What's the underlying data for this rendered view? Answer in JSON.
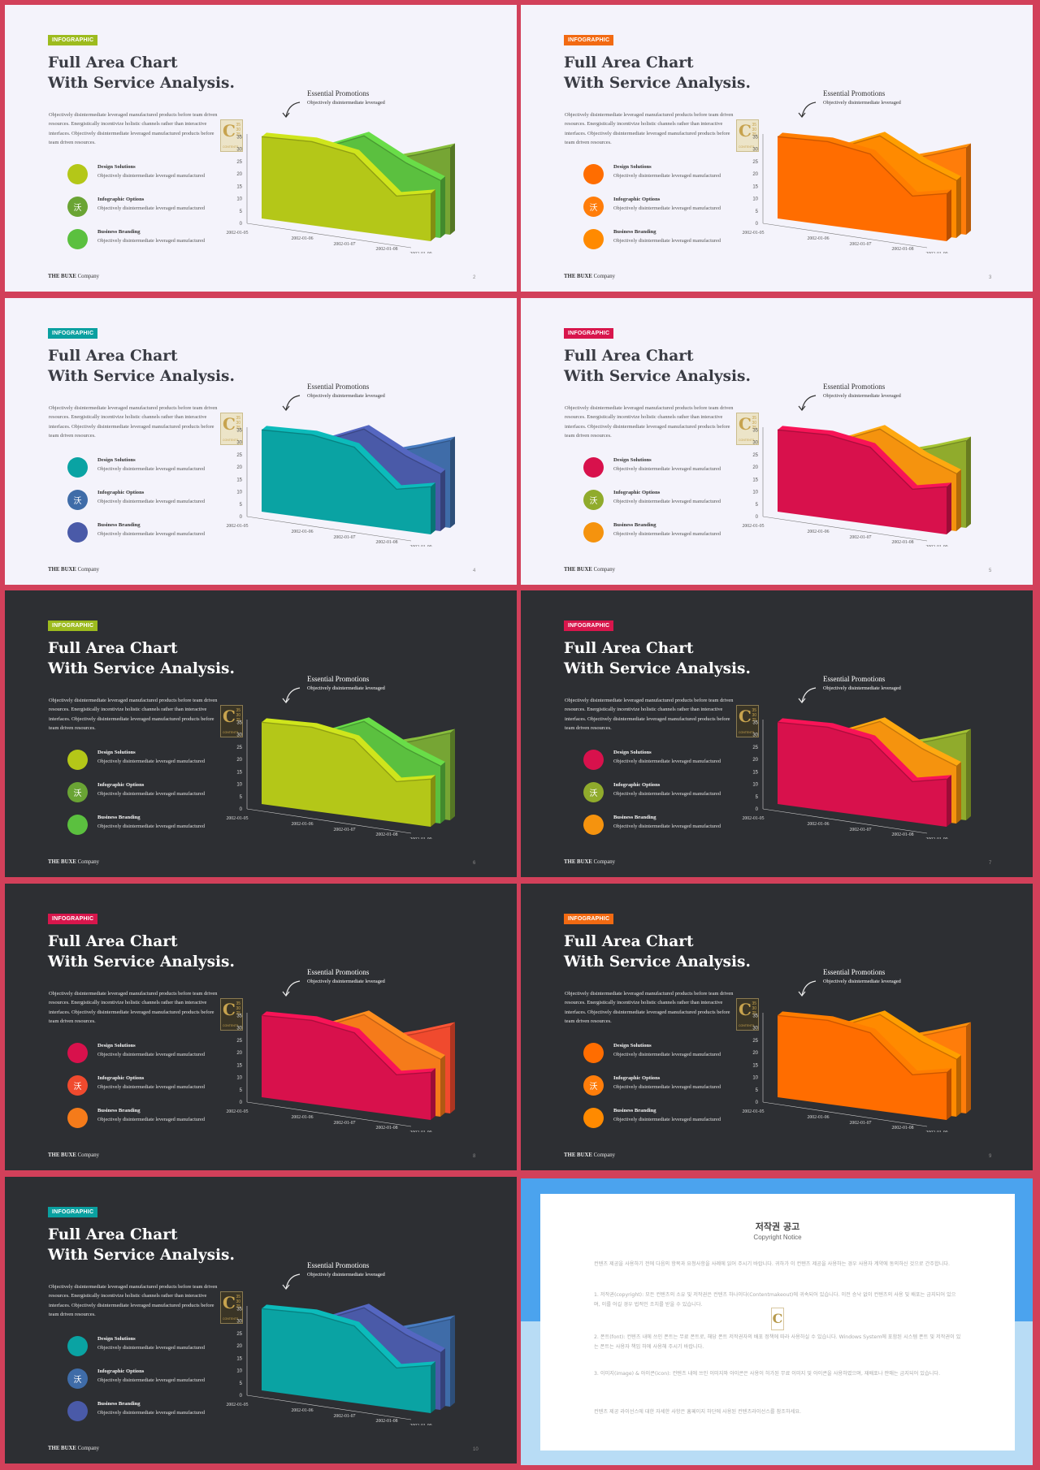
{
  "slides": [
    {
      "page": "2",
      "theme": "light",
      "pos": [
        6,
        6
      ],
      "badge_color": "#9dbb1e",
      "colors": [
        "#b4c718",
        "#5bc03f",
        "#76a534"
      ],
      "item_colors": [
        "#b4c718",
        "#6aa434",
        "#5bc03f"
      ]
    },
    {
      "page": "3",
      "theme": "light",
      "pos": [
        641,
        6
      ],
      "badge_color": "#f26a12",
      "colors": [
        "#ff6d00",
        "#ff8a00",
        "#ff7d0a"
      ],
      "item_colors": [
        "#ff6d00",
        "#ff7d0a",
        "#ff8a00"
      ]
    },
    {
      "page": "4",
      "theme": "light",
      "pos": [
        6,
        367
      ],
      "badge_color": "#0aa0a0",
      "colors": [
        "#0aa3a3",
        "#4a5aa8",
        "#3f6ca8"
      ],
      "item_colors": [
        "#0aa3a3",
        "#3f6ca8",
        "#4a5aa8"
      ]
    },
    {
      "page": "5",
      "theme": "light",
      "pos": [
        641,
        367
      ],
      "badge_color": "#d8164c",
      "colors": [
        "#d8114c",
        "#f5930e",
        "#90ab2c"
      ],
      "item_colors": [
        "#d8114c",
        "#90ab2c",
        "#f5930e"
      ]
    },
    {
      "page": "6",
      "theme": "dark",
      "pos": [
        6,
        727
      ],
      "badge_color": "#9dbb1e",
      "colors": [
        "#b4c718",
        "#5bc03f",
        "#76a534"
      ],
      "item_colors": [
        "#b4c718",
        "#6aa434",
        "#5bc03f"
      ]
    },
    {
      "page": "7",
      "theme": "dark",
      "pos": [
        641,
        727
      ],
      "badge_color": "#d8164c",
      "colors": [
        "#d8114c",
        "#f5930e",
        "#90ab2c"
      ],
      "item_colors": [
        "#d8114c",
        "#90ab2c",
        "#f5930e"
      ]
    },
    {
      "page": "8",
      "theme": "dark",
      "pos": [
        6,
        1088
      ],
      "badge_color": "#d8164c",
      "colors": [
        "#d8114c",
        "#f57b1a",
        "#f04a2e"
      ],
      "item_colors": [
        "#d8114c",
        "#f04a2e",
        "#f57b1a"
      ]
    },
    {
      "page": "9",
      "theme": "dark",
      "pos": [
        641,
        1088
      ],
      "badge_color": "#f26a12",
      "colors": [
        "#ff6d00",
        "#ff8a00",
        "#ff7d0a"
      ],
      "item_colors": [
        "#ff6d00",
        "#ff7d0a",
        "#ff8a00"
      ]
    },
    {
      "page": "10",
      "theme": "dark",
      "pos": [
        6,
        1449
      ],
      "badge_color": "#0aa0a0",
      "colors": [
        "#0aa3a3",
        "#4a5aa8",
        "#3f6ca8"
      ],
      "item_colors": [
        "#0aa3a3",
        "#3f6ca8",
        "#4a5aa8"
      ]
    }
  ],
  "content": {
    "badge": "INFOGRAPHIC",
    "title_line1": "Full Area Chart",
    "title_line2": "With Service Analysis.",
    "desc": "Objectively disintermediate leveraged manufactured products before team driven resources. Energistically incentivize holistic channels rather than interactive interfaces. Objectively disintermediate leveraged manufactured products before team driven resources.",
    "items": [
      {
        "title": "Design Solutions",
        "sub": "Objectively disintermediate leveraged manufactured",
        "glyph": ""
      },
      {
        "title": "Infographic Options",
        "sub": "Objectively disintermediate leveraged manufactured",
        "glyph": "沃"
      },
      {
        "title": "Business Branding",
        "sub": "Objectively disintermediate leveraged manufactured",
        "glyph": ""
      }
    ],
    "annotation_title": "Essential Promotions",
    "annotation_sub": "Objectively disintermediate leveraged",
    "footer_brand": "THE BUXE",
    "footer_company": "Company",
    "logo": {
      "letter": "C",
      "num_top": "35",
      "num_mid": "30",
      "num_bot": "25",
      "brand": "CONTENTS"
    }
  },
  "chart_data": {
    "type": "area",
    "x": [
      "2002-01-05",
      "2002-01-06",
      "2002-01-07",
      "2002-01-08",
      "2002-01-09"
    ],
    "y_ticks": [
      "0",
      "5",
      "10",
      "15",
      "20",
      "25",
      "30",
      "35"
    ],
    "ylim": [
      0,
      35
    ],
    "series": [
      {
        "values": [
          33,
          32,
          28,
          12,
          14
        ]
      },
      {
        "values": [
          30,
          28,
          34,
          24,
          18
        ]
      },
      {
        "values": [
          20,
          18,
          22,
          26,
          30
        ]
      }
    ]
  },
  "copyright": {
    "title": "저작권 공고",
    "subtitle": "Copyright Notice",
    "p1": "컨텐츠 제공을 사용하기 전에 다음의 항목과 요청사항을 사례에 읽어 주시기 바랍니다. 귀하가 이 컨텐츠 제공을 사용하는 경우 사용자 계약에 동의하신 것으로 간주합니다.",
    "p2": "1. 저작권(copyright): 모든 컨텐츠의 소유 및 저작권은 컨텐츠 하나이다(Contentmakeout)에 귀속되어 있습니다. 이전 승낙 없이 컨텐츠의 사용 및 배포는 금지되어 있으며, 이를 어길 경우 법적인 조치를 받을 수 있습니다.",
    "p3": "2. 폰트(font): 컨텐츠 내에 쓰인 폰트는 무료 폰트로, 해당 폰트 저작권자의 배포 정책에 따라 사용하실 수 있습니다. Windows System에 포함된 시스템 폰트 및 저작권이 있는 폰트는 사용자 책임 하에 사용해 주시기 바랍니다.",
    "p4": "3. 이미지(image) & 아이콘(icon): 컨텐츠 내에 쓰인 이미지와 아이콘은 사용이 허가된 무료 이미지 및 아이콘을 사용하였으며, 재배포나 판매는 금지되어 있습니다.",
    "p5": "컨텐츠 제공 라이선스에 대한 자세한 사항은 홈페이지 하단에 사용된 컨텐츠라이선스를 참조하세요."
  }
}
